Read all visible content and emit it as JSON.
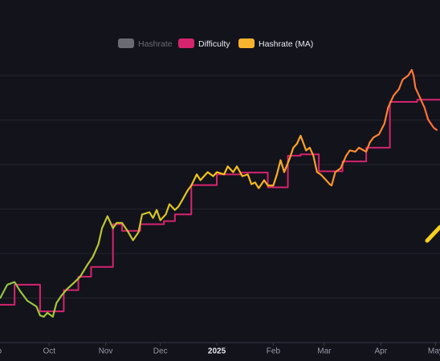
{
  "chart_data": {
    "type": "line",
    "background": "#13131c",
    "xlim": [
      -119,
      122.5
    ],
    "xticks": [
      {
        "value": -122,
        "label": "Sep"
      },
      {
        "value": -92,
        "label": "Oct"
      },
      {
        "value": -61,
        "label": "Nov"
      },
      {
        "value": -31,
        "label": "Dec"
      },
      {
        "value": 0,
        "label": "2025"
      },
      {
        "value": 31,
        "label": "Feb"
      },
      {
        "value": 59,
        "label": "Mar"
      },
      {
        "value": 90,
        "label": "Apr"
      },
      {
        "value": 120,
        "label": "May"
      }
    ],
    "ylim": [
      0,
      7.7
    ],
    "yticks": [
      0,
      1,
      2,
      3,
      4,
      5,
      6
    ],
    "grid": true,
    "legend": "top",
    "series": [
      {
        "name": "Hashrate",
        "color": "#6b6b73",
        "hidden": true
      },
      {
        "name": "Difficulty",
        "color": "#d6246e",
        "step": true,
        "x": [
          -119,
          -111,
          -97,
          -84,
          -76,
          -69,
          -57,
          -52,
          -42,
          -29,
          -23,
          -14,
          0,
          13,
          28,
          39,
          46,
          56,
          69,
          82,
          95,
          110
        ],
        "values": [
          0.85,
          1.3,
          0.7,
          1.18,
          1.48,
          1.7,
          2.66,
          2.51,
          2.66,
          2.73,
          2.88,
          3.54,
          3.78,
          3.82,
          3.49,
          4.2,
          4.23,
          3.85,
          4.07,
          4.38,
          5.41,
          5.46
        ]
      },
      {
        "name": "Hashrate (MA)",
        "color": "#f7b42c",
        "gradient": [
          "#8bc34a",
          "#f5c518",
          "#ff6a3d"
        ],
        "x": [
          -119,
          -115,
          -111,
          -108,
          -104,
          -99,
          -97,
          -95,
          -93,
          -90,
          -88,
          -85,
          -82,
          -78,
          -75,
          -71,
          -68,
          -65,
          -63,
          -60,
          -57,
          -55,
          -52,
          -49,
          -46,
          -43,
          -41,
          -37,
          -35,
          -33,
          -31,
          -28,
          -26,
          -23,
          -21,
          -19,
          -16,
          -14,
          -11,
          -9,
          -5,
          -2,
          0,
          4,
          6,
          9,
          11,
          14,
          17,
          19,
          21,
          23,
          26,
          28,
          31,
          33,
          35,
          37,
          40,
          42,
          44,
          46,
          49,
          51,
          53,
          55,
          57,
          60,
          62,
          63,
          65,
          68,
          71,
          73,
          76,
          78,
          82,
          84,
          86,
          89,
          92,
          94,
          97,
          100,
          102,
          105,
          107,
          108,
          109,
          111,
          114,
          116,
          119,
          121
        ],
        "values": [
          0.99,
          1.3,
          1.36,
          1.16,
          0.94,
          0.81,
          0.61,
          0.58,
          0.67,
          0.58,
          0.89,
          1.07,
          1.21,
          1.36,
          1.48,
          1.75,
          1.93,
          2.21,
          2.57,
          2.84,
          2.57,
          2.69,
          2.69,
          2.51,
          2.3,
          2.48,
          2.88,
          2.93,
          2.8,
          2.98,
          2.75,
          2.88,
          3.11,
          2.98,
          3.06,
          3.2,
          3.42,
          3.53,
          3.78,
          3.65,
          3.83,
          3.74,
          3.83,
          3.78,
          3.96,
          3.83,
          3.96,
          3.74,
          3.78,
          3.56,
          3.6,
          3.47,
          3.65,
          3.53,
          3.53,
          3.78,
          4.1,
          3.83,
          4.14,
          4.38,
          4.47,
          4.65,
          4.32,
          4.38,
          4.2,
          3.83,
          3.78,
          3.65,
          3.56,
          3.53,
          3.83,
          3.92,
          4.2,
          4.32,
          4.29,
          4.38,
          4.29,
          4.5,
          4.61,
          4.68,
          4.92,
          5.28,
          5.55,
          5.7,
          5.91,
          6.0,
          6.13,
          6.0,
          5.73,
          5.55,
          5.28,
          5.01,
          4.83,
          4.77
        ]
      }
    ]
  }
}
